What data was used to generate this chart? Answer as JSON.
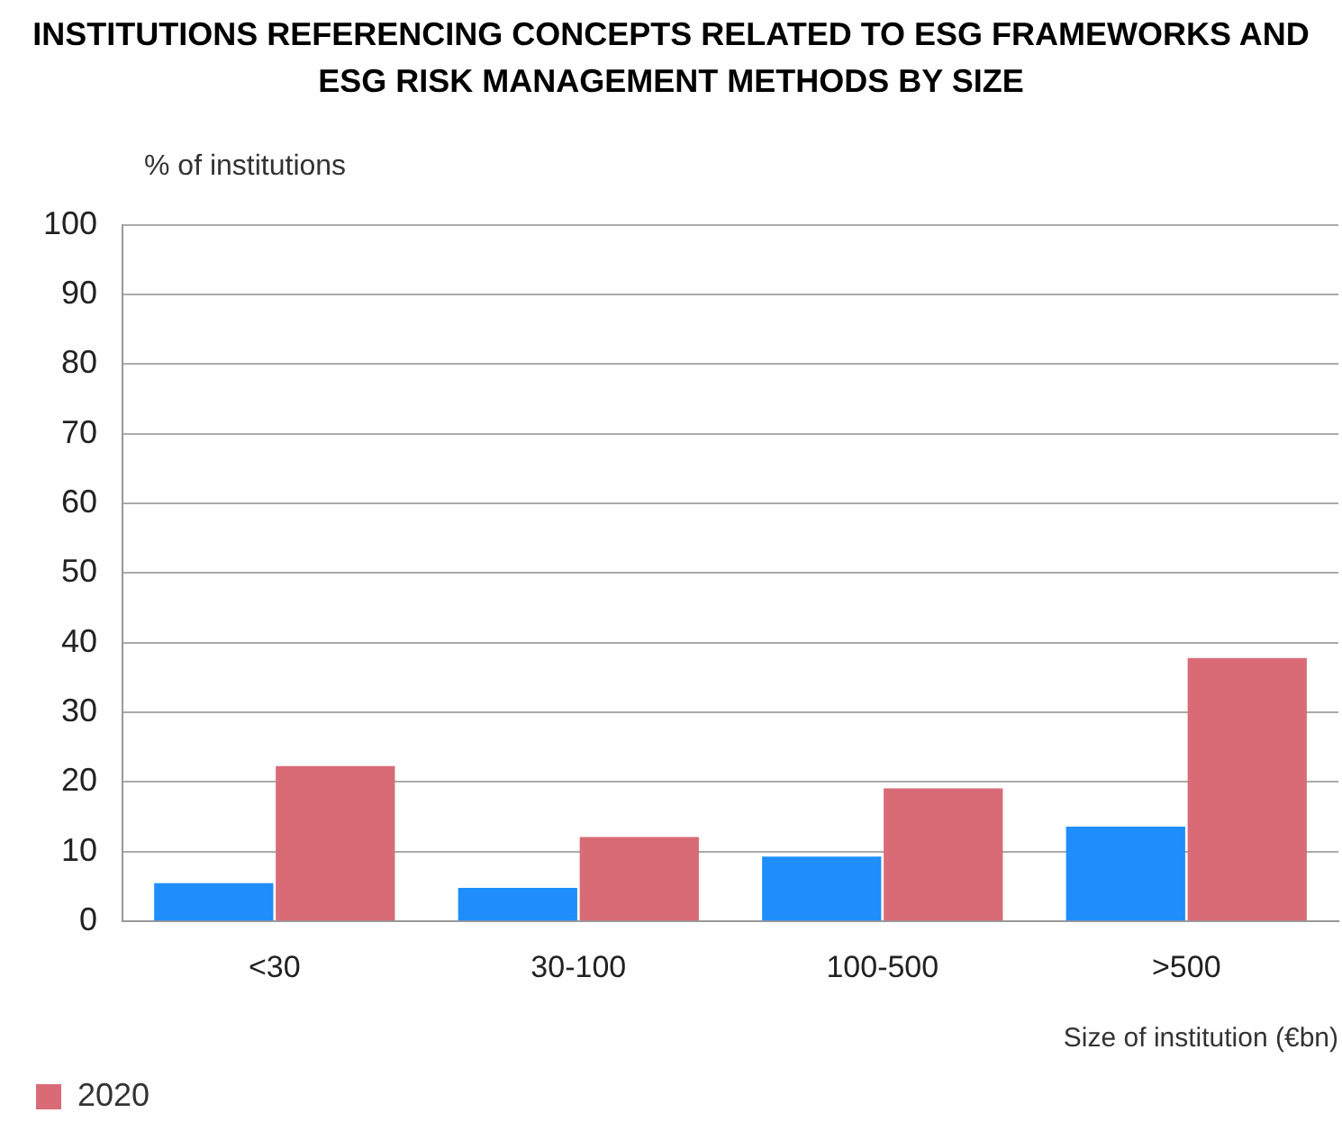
{
  "chart_data": {
    "type": "bar",
    "title": "INSTITUTIONS REFERENCING CONCEPTS RELATED TO ESG FRAMEWORKS AND ESG RISK MANAGEMENT METHODS BY SIZE",
    "ylabel": "% of institutions",
    "xlabel": "Size of institution (€bn)",
    "categories": [
      "<30",
      "30-100",
      "100-500",
      ">500"
    ],
    "series": [
      {
        "color": "#1f8efa",
        "values": [
          5.5,
          4.8,
          9.3,
          13.6
        ]
      },
      {
        "name": "2020",
        "color": "#d96b77",
        "values": [
          22.3,
          12.1,
          19.1,
          37.8
        ]
      }
    ],
    "ylim": [
      0,
      100
    ],
    "yticks": [
      0,
      10,
      20,
      30,
      40,
      50,
      60,
      70,
      80,
      90,
      100
    ],
    "grid": "y",
    "legend": "bottom left"
  }
}
